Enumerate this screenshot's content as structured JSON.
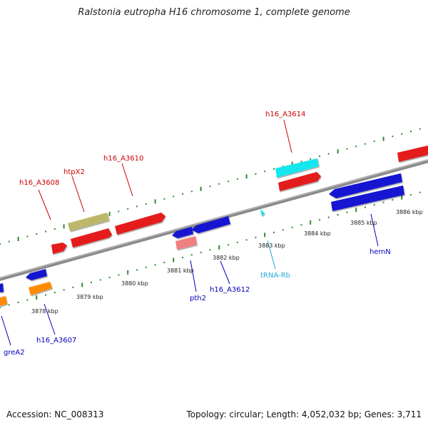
{
  "title": "Ralstonia eutropha H16 chromosome 1, complete genome",
  "footer": {
    "accession": "Accession: NC_008313",
    "topology": "Topology: circular; Length: 4,052,032 bp; Genes: 3,711"
  },
  "colors": {
    "backbone": "#8a8a8a",
    "tick": "#2f8a2f",
    "gene_red": "#e41a1a",
    "gene_blue": "#1414d2",
    "gene_cyan": "#19e6f0",
    "gene_olive": "#bdb76b",
    "gene_orange": "#ff8c00",
    "gene_pink": "#f08080",
    "label_red": "#cc0000",
    "label_blue": "#0000bb",
    "label_cyan": "#22aadd"
  },
  "genes": [
    {
      "label": "h16_A3608",
      "color": "red"
    },
    {
      "label": "htpX2",
      "color": "red"
    },
    {
      "label": "h16_A3610",
      "color": "red"
    },
    {
      "label": "h16_A3614",
      "color": "red"
    },
    {
      "label": "tRNA-Rb",
      "color": "cyan"
    },
    {
      "label": "hemN",
      "color": "blue"
    },
    {
      "label": "pth2",
      "color": "blue"
    },
    {
      "label": "h16_A3612",
      "color": "blue"
    },
    {
      "label": "h16_A3607",
      "color": "blue"
    },
    {
      "label": "greA2",
      "color": "blue"
    }
  ],
  "kbp": [
    "3878 kbp",
    "3879 kbp",
    "3880 kbp",
    "3881 kbp",
    "3882 kbp",
    "3883 kbp",
    "3884 kbp",
    "3885 kbp",
    "3886 kbp"
  ]
}
